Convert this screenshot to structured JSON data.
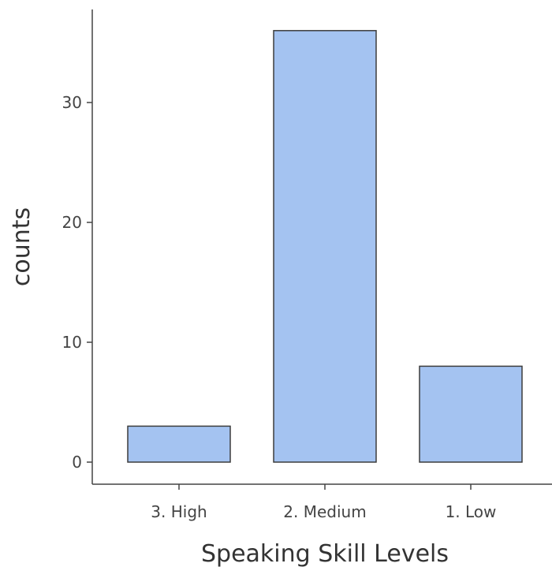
{
  "chart_data": {
    "type": "bar",
    "categories": [
      "3. High",
      "2. Medium",
      "1. Low"
    ],
    "values": [
      3,
      36,
      8
    ],
    "title": "",
    "xlabel": "Speaking Skill Levels",
    "ylabel": "counts",
    "ylim": [
      0,
      38
    ],
    "yticks": [
      0,
      10,
      20,
      30
    ],
    "grid": false,
    "bar_color": "#a4c3f1",
    "bar_edge_color": "#3d3d3d",
    "axis_color": "#444444"
  }
}
